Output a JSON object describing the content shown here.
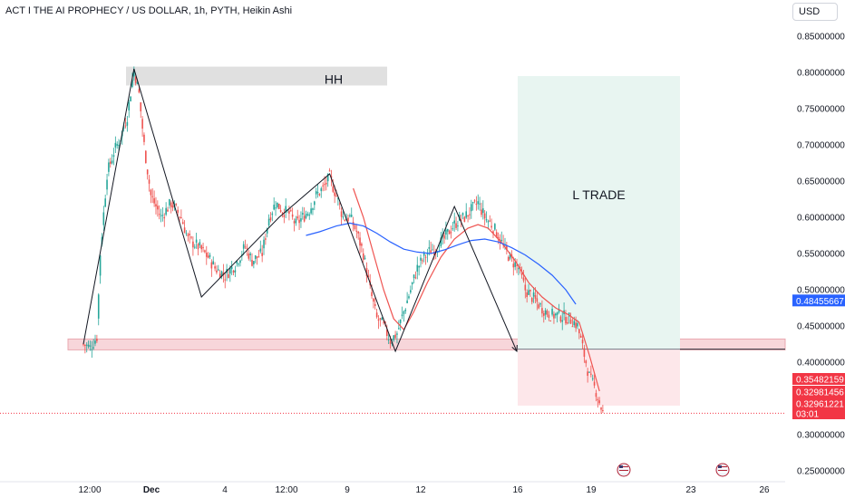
{
  "header": {
    "title": "ACT I THE AI PROPHECY / US DOLLAR, 1h, PYTH, Heikin Ashi",
    "currency": "USD"
  },
  "colors": {
    "up": "#26a69a",
    "down": "#ef5350",
    "ma_fast": "#ef5350",
    "ma_slow": "#2962ff",
    "zone_fill": "#f7d6da",
    "trade_profit": "#e8f5f1",
    "trade_loss": "#fde7ea",
    "hh_box": "#e0e0e0",
    "current_price_badge": "#f23645",
    "ma_badge": "#2962ff"
  },
  "chart_data": {
    "type": "candlestick",
    "price_axis": {
      "ticks": [
        "0.85000000",
        "0.80000000",
        "0.75000000",
        "0.70000000",
        "0.65000000",
        "0.60000000",
        "0.55000000",
        "0.50000000",
        "0.45000000",
        "0.40000000",
        "0.35000000",
        "0.30000000",
        "0.25000000"
      ],
      "range": [
        0.235,
        0.885
      ]
    },
    "time_axis": {
      "ticks": [
        "12:00",
        "Dec",
        "4",
        "12:00",
        "9",
        "12",
        "16",
        "19",
        "23",
        "26"
      ],
      "bold": [
        "Dec"
      ]
    },
    "candle_path": [
      [
        0,
        0.425
      ],
      [
        4,
        0.42
      ],
      [
        8,
        0.435
      ],
      [
        10,
        0.55
      ],
      [
        14,
        0.66
      ],
      [
        18,
        0.69
      ],
      [
        22,
        0.71
      ],
      [
        26,
        0.74
      ],
      [
        30,
        0.805
      ],
      [
        33,
        0.77
      ],
      [
        36,
        0.7
      ],
      [
        40,
        0.63
      ],
      [
        46,
        0.6
      ],
      [
        52,
        0.62
      ],
      [
        58,
        0.6
      ],
      [
        62,
        0.57
      ],
      [
        68,
        0.56
      ],
      [
        74,
        0.545
      ],
      [
        78,
        0.53
      ],
      [
        84,
        0.52
      ],
      [
        90,
        0.535
      ],
      [
        96,
        0.56
      ],
      [
        100,
        0.54
      ],
      [
        106,
        0.55
      ],
      [
        110,
        0.6
      ],
      [
        114,
        0.62
      ],
      [
        118,
        0.61
      ],
      [
        122,
        0.605
      ],
      [
        126,
        0.59
      ],
      [
        130,
        0.6
      ],
      [
        134,
        0.61
      ],
      [
        138,
        0.63
      ],
      [
        142,
        0.64
      ],
      [
        146,
        0.655
      ],
      [
        150,
        0.63
      ],
      [
        154,
        0.6
      ],
      [
        158,
        0.6
      ],
      [
        162,
        0.58
      ],
      [
        166,
        0.55
      ],
      [
        170,
        0.5
      ],
      [
        174,
        0.46
      ],
      [
        178,
        0.45
      ],
      [
        182,
        0.43
      ],
      [
        186,
        0.44
      ],
      [
        190,
        0.47
      ],
      [
        194,
        0.5
      ],
      [
        198,
        0.53
      ],
      [
        202,
        0.545
      ],
      [
        206,
        0.555
      ],
      [
        210,
        0.56
      ],
      [
        214,
        0.57
      ],
      [
        218,
        0.585
      ],
      [
        222,
        0.595
      ],
      [
        226,
        0.6
      ],
      [
        230,
        0.61
      ],
      [
        234,
        0.62
      ],
      [
        238,
        0.6
      ],
      [
        242,
        0.59
      ],
      [
        246,
        0.575
      ],
      [
        250,
        0.555
      ],
      [
        254,
        0.54
      ],
      [
        258,
        0.53
      ],
      [
        262,
        0.5
      ],
      [
        266,
        0.49
      ],
      [
        270,
        0.48
      ],
      [
        274,
        0.47
      ],
      [
        278,
        0.465
      ],
      [
        282,
        0.465
      ],
      [
        286,
        0.462
      ],
      [
        290,
        0.458
      ],
      [
        293,
        0.45
      ],
      [
        296,
        0.42
      ],
      [
        300,
        0.38
      ],
      [
        304,
        0.36
      ],
      [
        308,
        0.33
      ]
    ],
    "series": [
      {
        "name": "MA fast",
        "color": "#ef5350",
        "points": [
          [
            160,
            0.64
          ],
          [
            166,
            0.6
          ],
          [
            172,
            0.55
          ],
          [
            178,
            0.5
          ],
          [
            184,
            0.46
          ],
          [
            190,
            0.445
          ],
          [
            196,
            0.47
          ],
          [
            204,
            0.51
          ],
          [
            212,
            0.545
          ],
          [
            220,
            0.57
          ],
          [
            228,
            0.585
          ],
          [
            234,
            0.59
          ],
          [
            240,
            0.585
          ],
          [
            248,
            0.565
          ],
          [
            256,
            0.54
          ],
          [
            264,
            0.51
          ],
          [
            272,
            0.49
          ],
          [
            280,
            0.475
          ],
          [
            288,
            0.465
          ],
          [
            294,
            0.455
          ],
          [
            300,
            0.41
          ],
          [
            306,
            0.36
          ]
        ]
      },
      {
        "name": "MA slow",
        "color": "#2962ff",
        "points": [
          [
            132,
            0.575
          ],
          [
            140,
            0.58
          ],
          [
            150,
            0.588
          ],
          [
            158,
            0.592
          ],
          [
            166,
            0.588
          ],
          [
            174,
            0.578
          ],
          [
            182,
            0.566
          ],
          [
            190,
            0.556
          ],
          [
            198,
            0.552
          ],
          [
            206,
            0.55
          ],
          [
            214,
            0.555
          ],
          [
            222,
            0.562
          ],
          [
            230,
            0.568
          ],
          [
            238,
            0.57
          ],
          [
            246,
            0.566
          ],
          [
            254,
            0.558
          ],
          [
            262,
            0.548
          ],
          [
            270,
            0.535
          ],
          [
            278,
            0.52
          ],
          [
            286,
            0.5
          ],
          [
            292,
            0.48
          ]
        ]
      }
    ],
    "structure_line": [
      [
        0,
        0.425
      ],
      [
        30,
        0.805
      ],
      [
        70,
        0.49
      ],
      [
        116,
        0.6
      ],
      [
        146,
        0.66
      ],
      [
        185,
        0.415
      ],
      [
        220,
        0.615
      ],
      [
        257,
        0.415
      ]
    ],
    "support_zone": [
      0.417,
      0.432
    ],
    "trade_box": {
      "entry": 0.418,
      "target": 0.795,
      "stop": 0.34,
      "label": "L TRADE"
    },
    "hh_box": {
      "top": 0.808,
      "bottom": 0.782,
      "label": "HH"
    },
    "price_badges": [
      {
        "value": "0.48455667",
        "price": 0.4846,
        "color": "#2962ff"
      },
      {
        "value": "0.35482159",
        "price": 0.3548,
        "color": "#f23645"
      },
      {
        "value": "0.32981456",
        "price": 0.3298,
        "color": "#f23645"
      },
      {
        "value": "0.32961221",
        "price": 0.3296,
        "color": "#f23645"
      },
      {
        "value": "03:01",
        "price": null,
        "color": "#f23645"
      }
    ],
    "current_price": 0.3296,
    "event_icons": [
      "flag-icon",
      "flag-icon"
    ]
  }
}
